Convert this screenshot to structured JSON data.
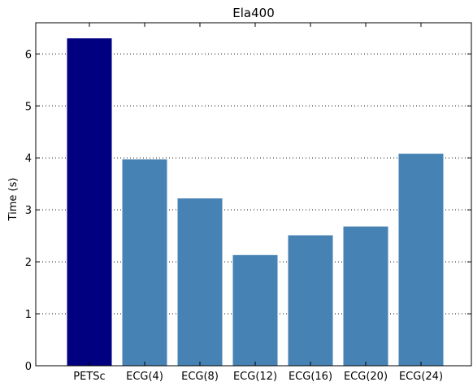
{
  "chart_data": {
    "type": "bar",
    "title": "Ela400",
    "xlabel": "",
    "ylabel": "Time (s)",
    "categories": [
      "PETSc",
      "ECG(4)",
      "ECG(8)",
      "ECG(12)",
      "ECG(16)",
      "ECG(20)",
      "ECG(24)"
    ],
    "values": [
      6.3,
      3.97,
      3.22,
      2.13,
      2.51,
      2.68,
      4.08
    ],
    "colors": [
      "#000080",
      "#4682b4",
      "#4682b4",
      "#4682b4",
      "#4682b4",
      "#4682b4",
      "#4682b4"
    ],
    "ylim": [
      0,
      6.6
    ],
    "yticks": [
      0,
      1,
      2,
      3,
      4,
      5,
      6
    ],
    "grid": true
  }
}
